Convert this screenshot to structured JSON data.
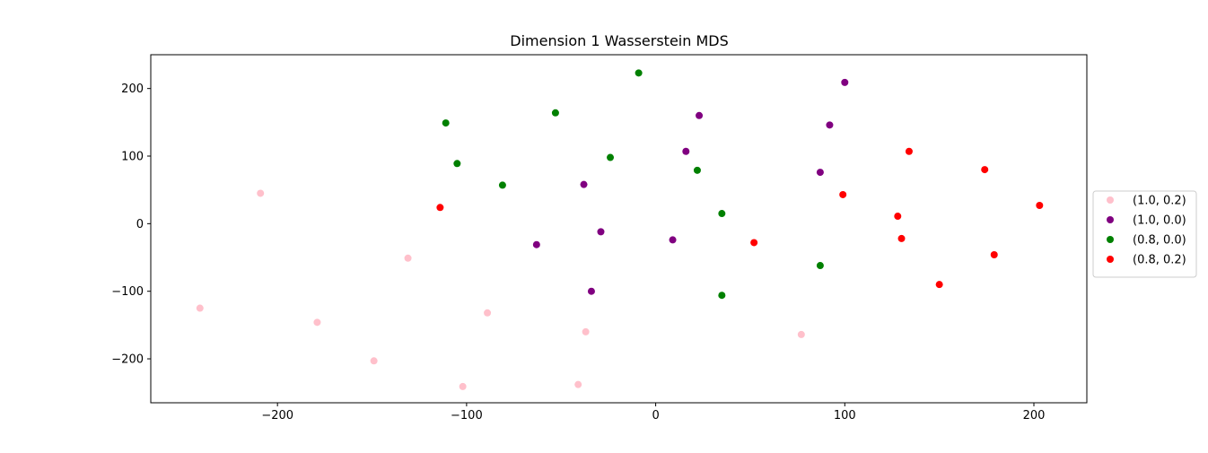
{
  "chart_data": {
    "type": "scatter",
    "title": "Dimension 1 Wasserstein MDS",
    "xlabel": "",
    "ylabel": "",
    "xlim": [
      -267,
      228
    ],
    "ylim": [
      -265,
      250
    ],
    "xticks": [
      -200,
      -100,
      0,
      100,
      200
    ],
    "yticks": [
      -200,
      -100,
      0,
      100,
      200
    ],
    "grid": false,
    "legend_position": "right",
    "series": [
      {
        "name": "(1.0, 0.2)",
        "color": "#ffc0cb",
        "points": [
          {
            "x": -209,
            "y": 45
          },
          {
            "x": -241,
            "y": -125
          },
          {
            "x": -179,
            "y": -146
          },
          {
            "x": -149,
            "y": -203
          },
          {
            "x": -131,
            "y": -51
          },
          {
            "x": -89,
            "y": -132
          },
          {
            "x": -102,
            "y": -241
          },
          {
            "x": -37,
            "y": -160
          },
          {
            "x": -41,
            "y": -238
          },
          {
            "x": 77,
            "y": -164
          }
        ]
      },
      {
        "name": "(1.0, 0.0)",
        "color": "#800080",
        "points": [
          {
            "x": 100,
            "y": 209
          },
          {
            "x": 23,
            "y": 160
          },
          {
            "x": 92,
            "y": 146
          },
          {
            "x": 16,
            "y": 107
          },
          {
            "x": 87,
            "y": 76
          },
          {
            "x": -38,
            "y": 58
          },
          {
            "x": -63,
            "y": -31
          },
          {
            "x": -29,
            "y": -12
          },
          {
            "x": 9,
            "y": -24
          },
          {
            "x": -34,
            "y": -100
          }
        ]
      },
      {
        "name": "(0.8, 0.0)",
        "color": "#008000",
        "points": [
          {
            "x": -9,
            "y": 223
          },
          {
            "x": -111,
            "y": 149
          },
          {
            "x": -53,
            "y": 164
          },
          {
            "x": -24,
            "y": 98
          },
          {
            "x": -105,
            "y": 89
          },
          {
            "x": -81,
            "y": 57
          },
          {
            "x": 22,
            "y": 79
          },
          {
            "x": 35,
            "y": 15
          },
          {
            "x": 87,
            "y": -62
          },
          {
            "x": 35,
            "y": -106
          }
        ]
      },
      {
        "name": "(0.8, 0.2)",
        "color": "#ff0000",
        "points": [
          {
            "x": -114,
            "y": 24
          },
          {
            "x": 134,
            "y": 107
          },
          {
            "x": 174,
            "y": 80
          },
          {
            "x": 99,
            "y": 43
          },
          {
            "x": 128,
            "y": 11
          },
          {
            "x": 203,
            "y": 27
          },
          {
            "x": 130,
            "y": -22
          },
          {
            "x": 52,
            "y": -28
          },
          {
            "x": 179,
            "y": -46
          },
          {
            "x": 150,
            "y": -90
          }
        ]
      }
    ]
  }
}
